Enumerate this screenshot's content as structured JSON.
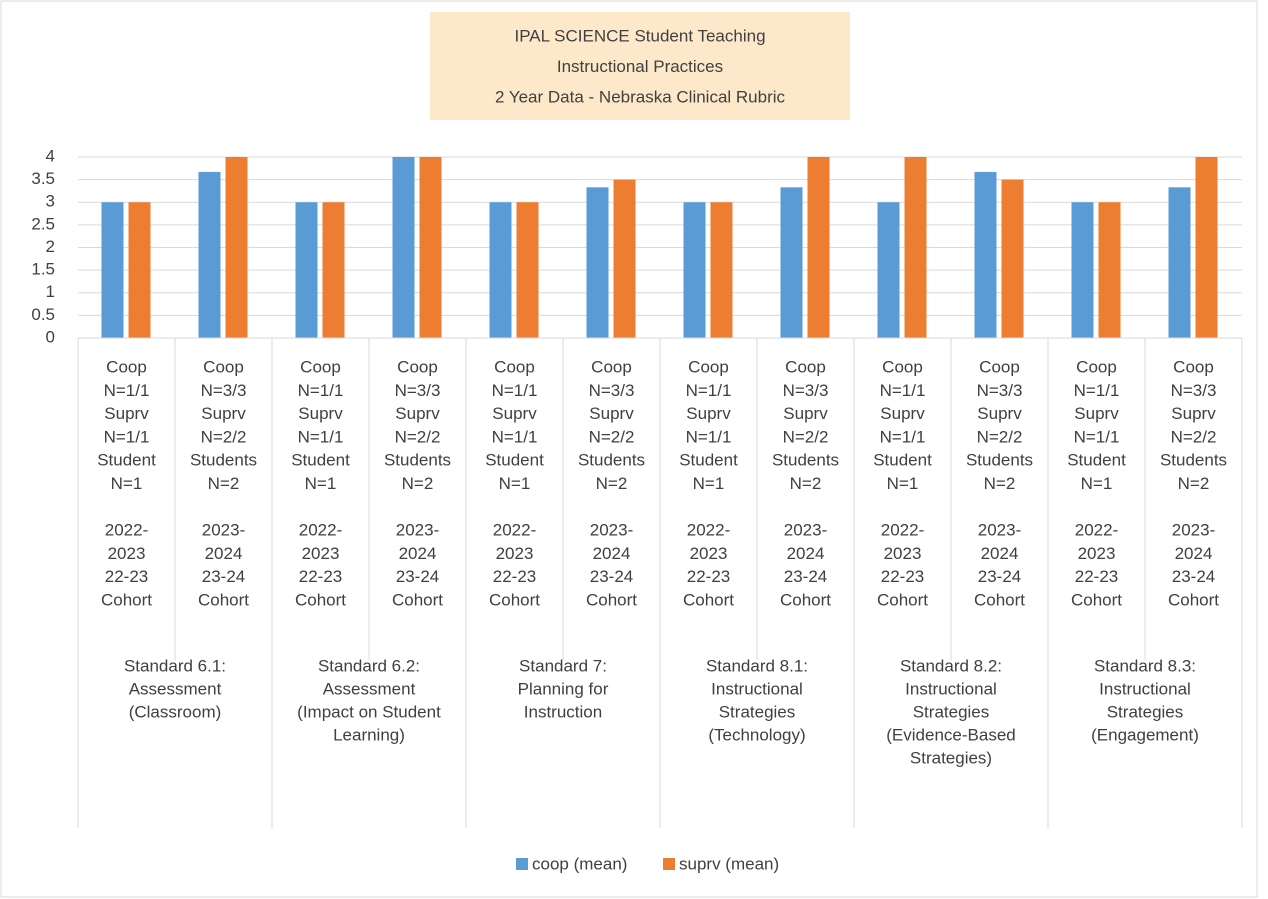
{
  "chart_data": {
    "type": "bar",
    "title": [
      "IPAL SCIENCE Student Teaching",
      "Instructional Practices",
      "2 Year Data - Nebraska Clinical Rubric"
    ],
    "categories": [
      [
        [
          "Coop",
          "N=1/1",
          "Suprv",
          "N=1/1",
          "Student",
          "N=1"
        ],
        [
          "2022-",
          "2023",
          "22-23",
          "Cohort"
        ]
      ],
      [
        [
          "Coop",
          "N=3/3",
          "Suprv",
          "N=2/2",
          "Students",
          "N=2"
        ],
        [
          "2023-",
          "2024",
          "23-24",
          "Cohort"
        ]
      ],
      [
        [
          "Coop",
          "N=1/1",
          "Suprv",
          "N=1/1",
          "Student",
          "N=1"
        ],
        [
          "2022-",
          "2023",
          "22-23",
          "Cohort"
        ]
      ],
      [
        [
          "Coop",
          "N=3/3",
          "Suprv",
          "N=2/2",
          "Students",
          "N=2"
        ],
        [
          "2023-",
          "2024",
          "23-24",
          "Cohort"
        ]
      ],
      [
        [
          "Coop",
          "N=1/1",
          "Suprv",
          "N=1/1",
          "Student",
          "N=1"
        ],
        [
          "2022-",
          "2023",
          "22-23",
          "Cohort"
        ]
      ],
      [
        [
          "Coop",
          "N=3/3",
          "Suprv",
          "N=2/2",
          "Students",
          "N=2"
        ],
        [
          "2023-",
          "2024",
          "23-24",
          "Cohort"
        ]
      ],
      [
        [
          "Coop",
          "N=1/1",
          "Suprv",
          "N=1/1",
          "Student",
          "N=1"
        ],
        [
          "2022-",
          "2023",
          "22-23",
          "Cohort"
        ]
      ],
      [
        [
          "Coop",
          "N=3/3",
          "Suprv",
          "N=2/2",
          "Students",
          "N=2"
        ],
        [
          "2023-",
          "2024",
          "23-24",
          "Cohort"
        ]
      ],
      [
        [
          "Coop",
          "N=1/1",
          "Suprv",
          "N=1/1",
          "Student",
          "N=1"
        ],
        [
          "2022-",
          "2023",
          "22-23",
          "Cohort"
        ]
      ],
      [
        [
          "Coop",
          "N=3/3",
          "Suprv",
          "N=2/2",
          "Students",
          "N=2"
        ],
        [
          "2023-",
          "2024",
          "23-24",
          "Cohort"
        ]
      ],
      [
        [
          "Coop",
          "N=1/1",
          "Suprv",
          "N=1/1",
          "Student",
          "N=1"
        ],
        [
          "2022-",
          "2023",
          "22-23",
          "Cohort"
        ]
      ],
      [
        [
          "Coop",
          "N=3/3",
          "Suprv",
          "N=2/2",
          "Students",
          "N=2"
        ],
        [
          "2023-",
          "2024",
          "23-24",
          "Cohort"
        ]
      ]
    ],
    "groups": [
      [
        "Standard 6.1:",
        "Assessment",
        "(Classroom)"
      ],
      [
        "Standard 6.2:",
        "Assessment",
        "(Impact on Student",
        "Learning)"
      ],
      [
        "Standard 7:",
        "Planning for",
        "Instruction"
      ],
      [
        "Standard 8.1:",
        "Instructional",
        "Strategies",
        "(Technology)"
      ],
      [
        "Standard 8.2:",
        "Instructional",
        "Strategies",
        "(Evidence-Based",
        "Strategies)"
      ],
      [
        "Standard 8.3:",
        "Instructional",
        "Strategies",
        "(Engagement)"
      ]
    ],
    "series": [
      {
        "name": "coop (mean)",
        "color": "#5b9bd5",
        "values": [
          3,
          3.67,
          3,
          4,
          3,
          3.33,
          3,
          3.33,
          3,
          3.67,
          3,
          3.33
        ]
      },
      {
        "name": "suprv (mean)",
        "color": "#ed7d31",
        "values": [
          3,
          4,
          3,
          4,
          3,
          3.5,
          3,
          4,
          4,
          3.5,
          3,
          4
        ]
      }
    ],
    "ylim": [
      0,
      4
    ],
    "yticks": [
      0,
      0.5,
      1,
      1.5,
      2,
      2.5,
      3,
      3.5,
      4
    ],
    "grid": true,
    "legend": "bottom"
  }
}
